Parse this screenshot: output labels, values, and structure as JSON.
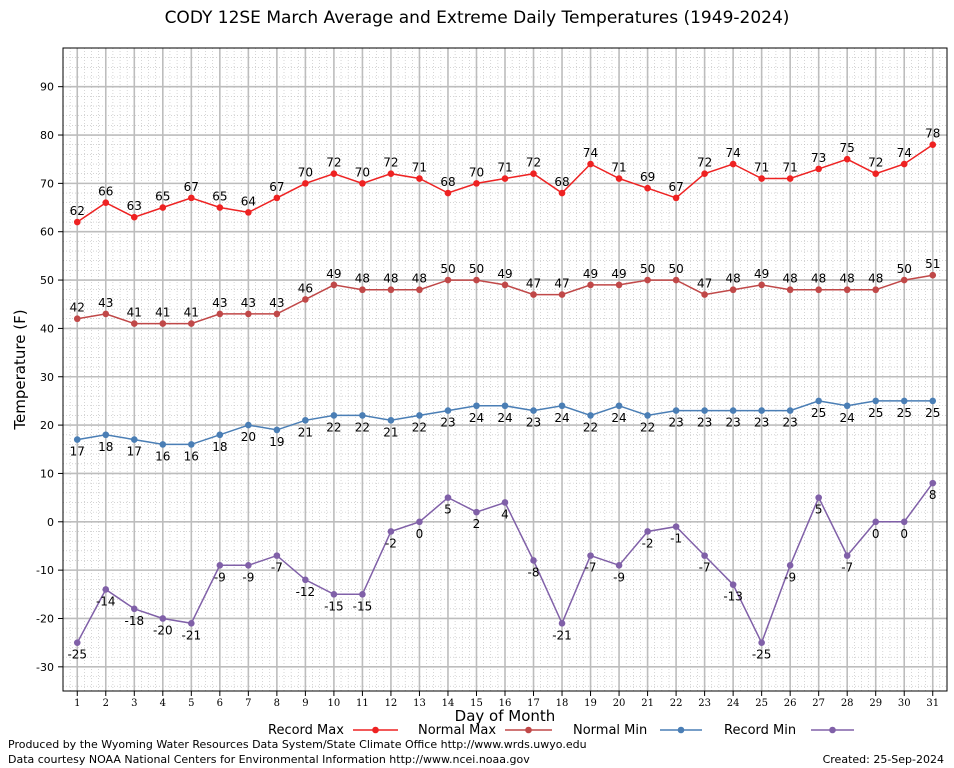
{
  "chart_data": {
    "type": "line",
    "title": "CODY 12SE March Average and Extreme Daily Temperatures (1949-2024)",
    "xlabel": "Day of Month",
    "ylabel": "Temperature (F)",
    "x": [
      1,
      2,
      3,
      4,
      5,
      6,
      7,
      8,
      9,
      10,
      11,
      12,
      13,
      14,
      15,
      16,
      17,
      18,
      19,
      20,
      21,
      22,
      23,
      24,
      25,
      26,
      27,
      28,
      29,
      30,
      31
    ],
    "xlim": [
      0.5,
      31.5
    ],
    "ylim": [
      -35,
      98
    ],
    "yticks": [
      -30,
      -20,
      -10,
      0,
      10,
      20,
      30,
      40,
      50,
      60,
      70,
      80,
      90
    ],
    "grid": true,
    "legend_position": "bottom",
    "series": [
      {
        "name": "Record Max",
        "color": "#ee2222",
        "label_side": "above",
        "values": [
          62,
          66,
          63,
          65,
          67,
          65,
          64,
          67,
          70,
          72,
          70,
          72,
          71,
          68,
          70,
          71,
          72,
          68,
          74,
          71,
          69,
          67,
          72,
          74,
          71,
          71,
          73,
          75,
          72,
          74,
          78
        ]
      },
      {
        "name": "Normal Max",
        "color": "#c04848",
        "label_side": "above",
        "values": [
          42,
          43,
          41,
          41,
          41,
          43,
          43,
          43,
          46,
          49,
          48,
          48,
          48,
          50,
          50,
          49,
          47,
          47,
          49,
          49,
          50,
          50,
          47,
          48,
          49,
          48,
          48,
          48,
          48,
          50,
          51
        ]
      },
      {
        "name": "Normal Min",
        "color": "#4a7eb5",
        "label_side": "below",
        "values": [
          17,
          18,
          17,
          16,
          16,
          18,
          20,
          19,
          21,
          22,
          22,
          21,
          22,
          23,
          24,
          24,
          23,
          24,
          22,
          24,
          22,
          23,
          23,
          23,
          23,
          23,
          25,
          24,
          25,
          25,
          25
        ]
      },
      {
        "name": "Record Min",
        "color": "#8060a8",
        "label_side": "below",
        "values": [
          -25,
          -14,
          -18,
          -20,
          -21,
          -9,
          -9,
          -7,
          -12,
          -15,
          -15,
          -2,
          0,
          5,
          2,
          4,
          -8,
          -21,
          -7,
          -9,
          -2,
          -1,
          -7,
          -13,
          -25,
          -9,
          5,
          -7,
          0,
          0,
          8
        ]
      }
    ]
  },
  "footer": {
    "produced_by": "Produced by the Wyoming Water Resources Data System/State Climate Office http://www.wrds.uwyo.edu",
    "courtesy": "Data courtesy NOAA National Centers for Environmental Information http://www.ncei.noaa.gov",
    "created": "Created: 25-Sep-2024"
  }
}
